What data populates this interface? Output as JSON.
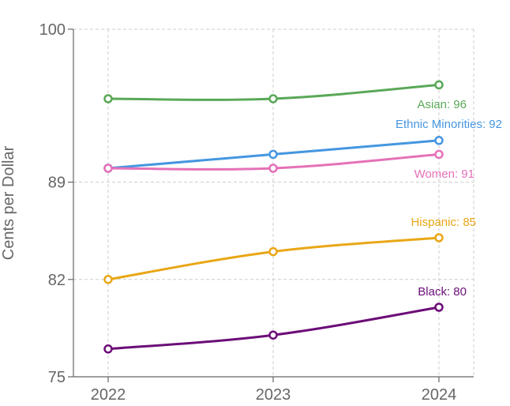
{
  "chart_data": {
    "type": "line",
    "title": "",
    "xlabel": "",
    "ylabel": "Cents per Dollar",
    "x": [
      "2022",
      "2023",
      "2024"
    ],
    "ylim": [
      75,
      100
    ],
    "yticks": [
      "75",
      "82",
      "89",
      "100"
    ],
    "grid": true,
    "legend": "none",
    "series": [
      {
        "name": "Asian",
        "label": "Asian: 96",
        "color": "#5aa857",
        "values": [
          95,
          95,
          96
        ]
      },
      {
        "name": "Ethnic Minorities",
        "label": "Ethnic Minorities: 92",
        "color": "#4596e0",
        "values": [
          90,
          91,
          92
        ]
      },
      {
        "name": "Women",
        "label": "Women: 91",
        "color": "#e571b8",
        "values": [
          90,
          90,
          91
        ]
      },
      {
        "name": "Hispanic",
        "label": "Hispanic: 85",
        "color": "#e9a716",
        "values": [
          82,
          84,
          85
        ]
      },
      {
        "name": "Black",
        "label": "Black: 80",
        "color": "#6c0d78",
        "values": [
          77,
          78,
          80
        ]
      }
    ]
  }
}
